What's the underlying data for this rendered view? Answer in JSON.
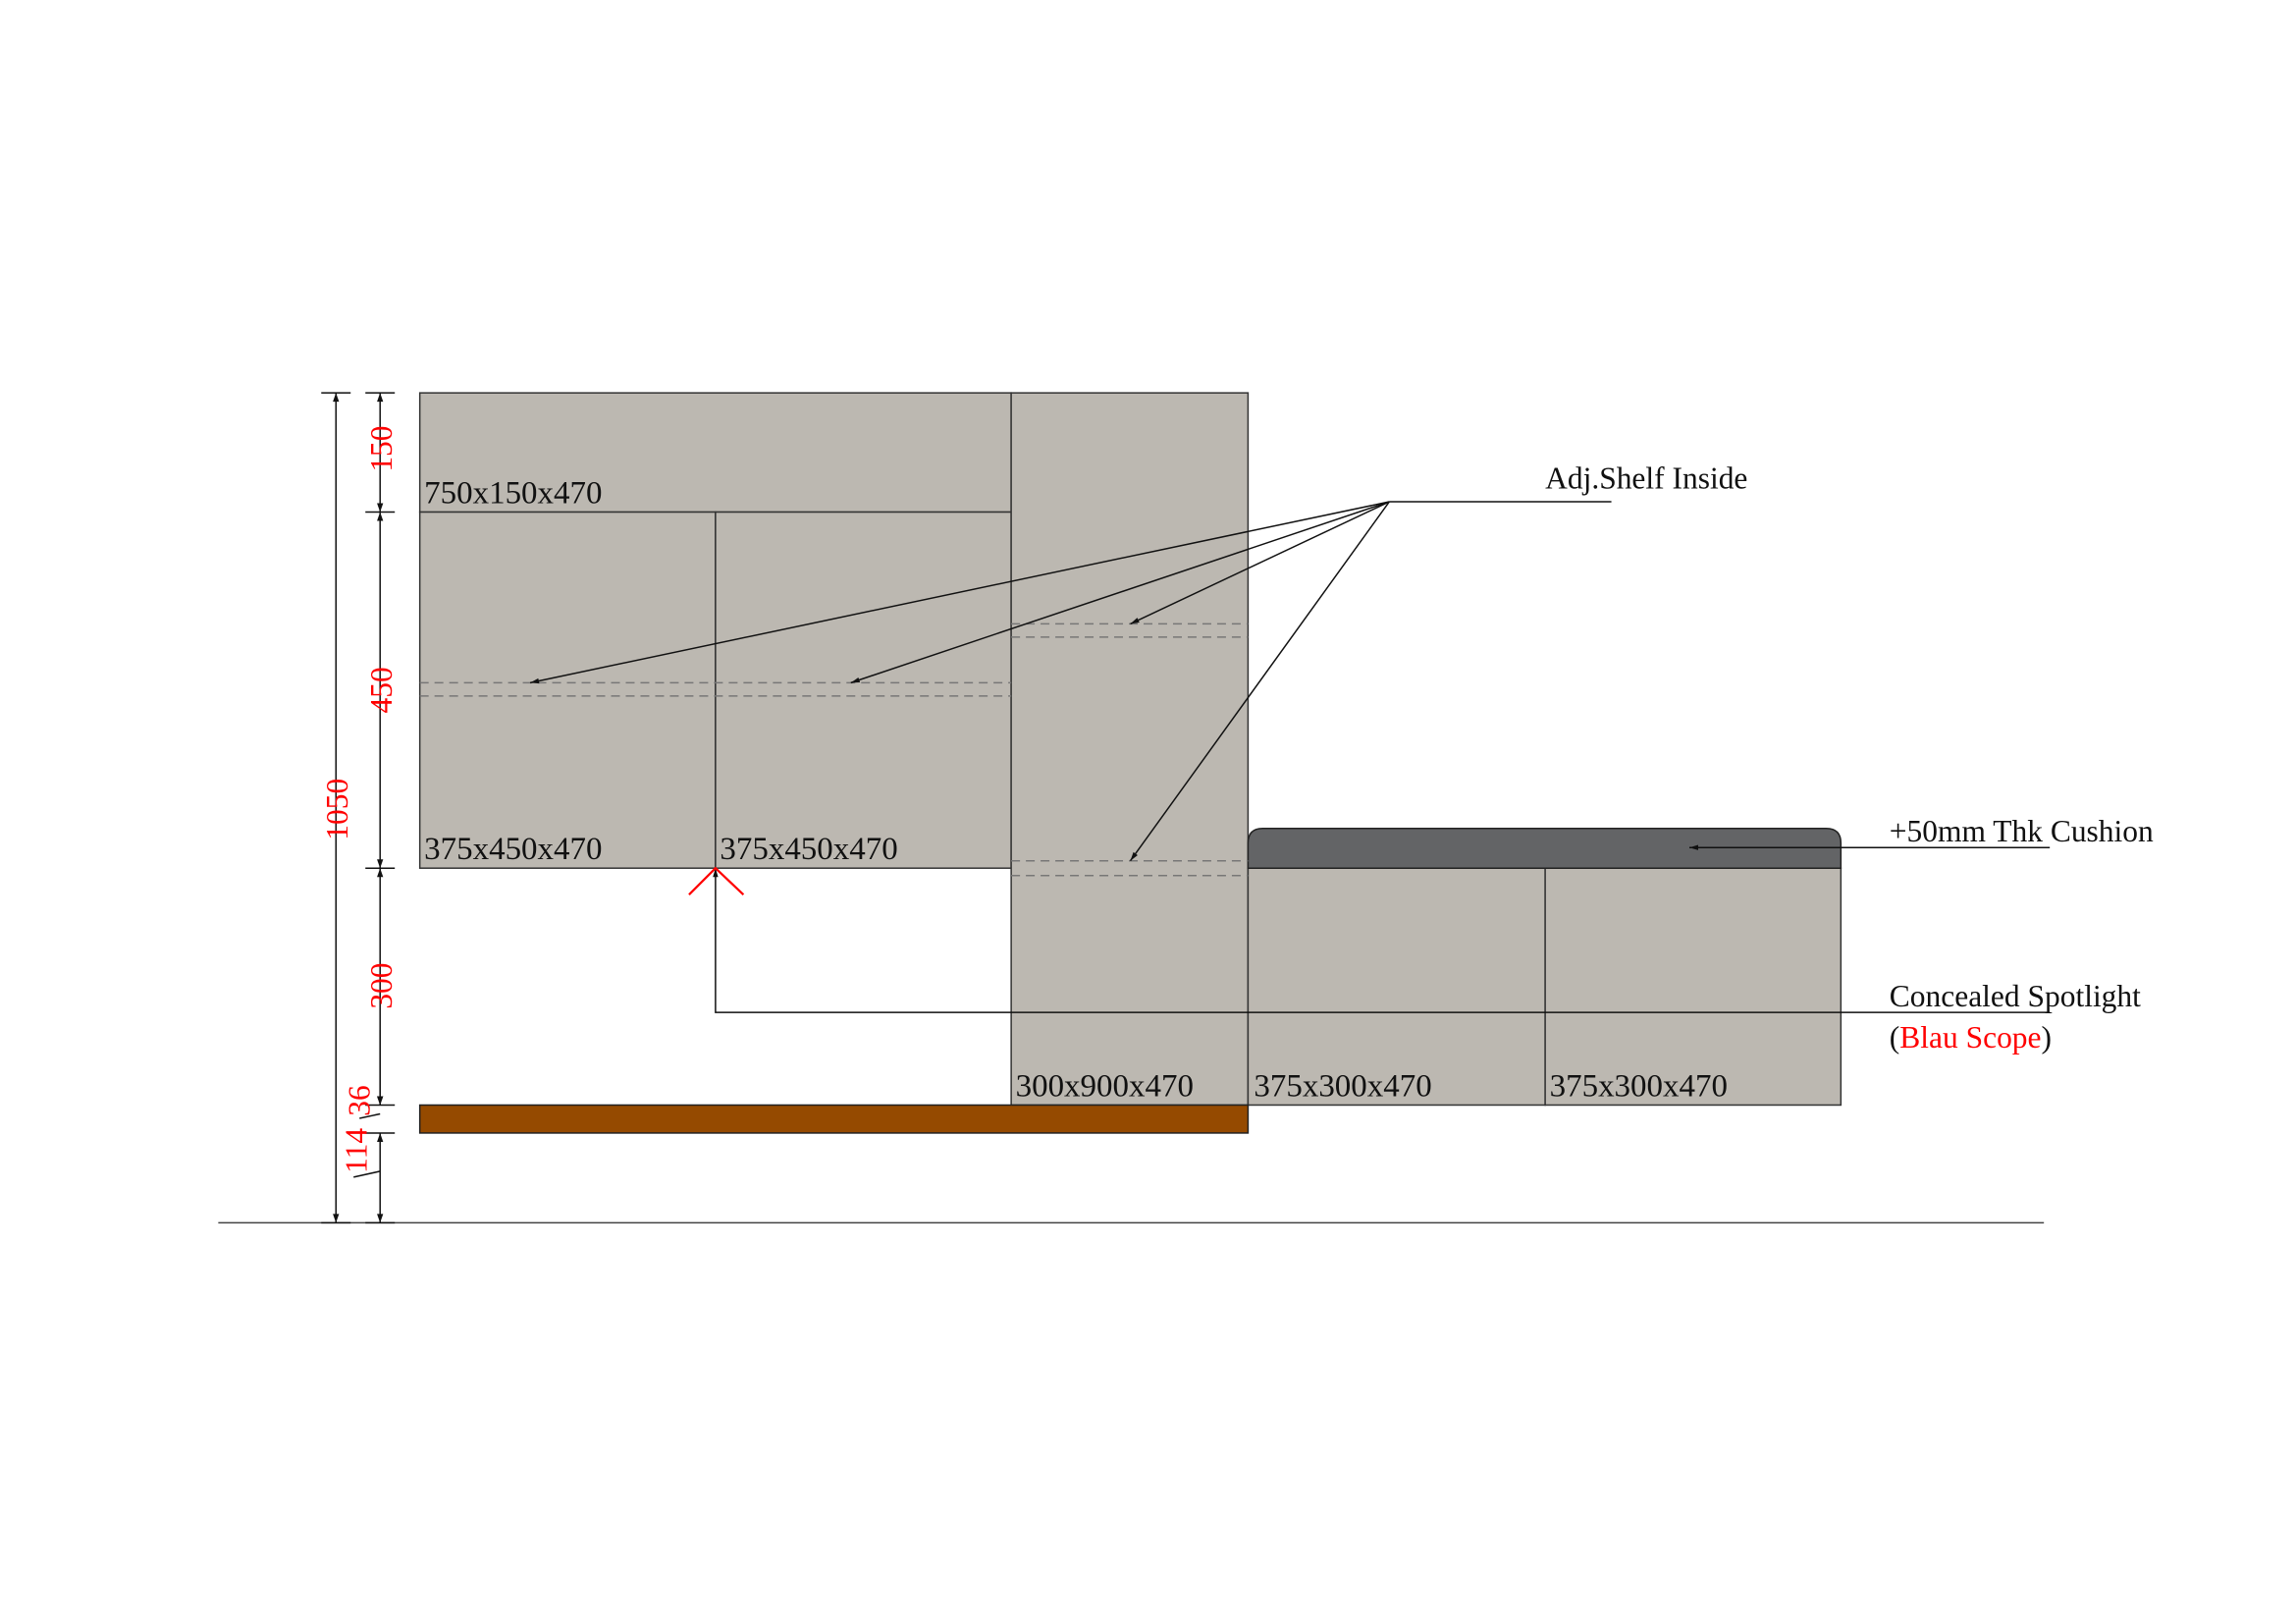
{
  "colors": {
    "cabinet": "#bcb8b1",
    "cushion": "#636466",
    "wood_base": "#954a00",
    "dimension_text": "#ff0000"
  },
  "modules": {
    "top": "750x150x470",
    "lower_left": "375x450x470",
    "lower_right": "375x450x470",
    "tall": "300x900x470",
    "bench_left": "375x300x470",
    "bench_right": "375x300x470"
  },
  "notes": {
    "shelf": "Adj.Shelf Inside",
    "cushion": "+50mm Thk Cushion",
    "spotlight": "Concealed Spotlight",
    "spotlight_open": "(",
    "spotlight_brand": "Blau Scope",
    "spotlight_close": ")"
  },
  "dimensions": {
    "total": "1050",
    "top": "150",
    "middle": "450",
    "gap": "300",
    "base_thickness": "36",
    "base_height": "114"
  }
}
